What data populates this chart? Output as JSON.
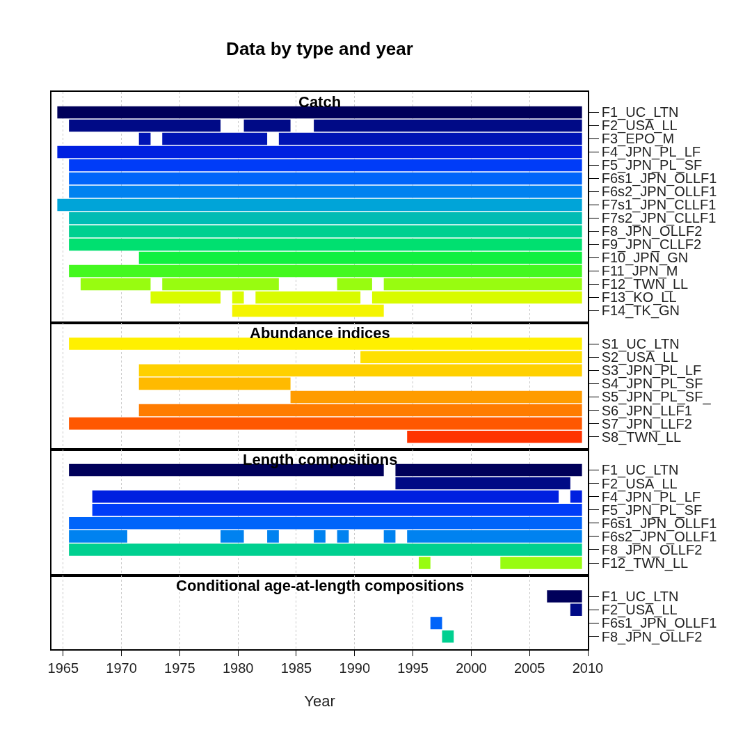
{
  "chart_data": [
    {
      "type": "bar",
      "orientation": "horizontal",
      "title": "Data by type and year",
      "annotations": [
        "Catch"
      ],
      "categories": [
        "F1_UC_LTN",
        "F2_USA_LL",
        "F3_EPO_M",
        "F4_JPN_PL_LF",
        "F5_JPN_PL_SF",
        "F6s1_JPN_OLLF1",
        "F6s2_JPN_OLLF1",
        "F7s1_JPN_CLLF1",
        "F7s2_JPN_CLLF1",
        "F8_JPN_OLLF2",
        "F9_JPN_CLLF2",
        "F10_JPN_GN",
        "F11_JPN_M",
        "F12_TWN_LL",
        "F13_KO_LL",
        "F14_TK_GN"
      ],
      "series": [
        {
          "colors": [
            "#00005a",
            "#000a86",
            "#0014b4",
            "#0020e0",
            "#003cf8",
            "#0064fa",
            "#0082f0",
            "#00a4d8",
            "#00bcb4",
            "#00d090",
            "#00e070",
            "#10f040",
            "#44f820",
            "#98fc10",
            "#d8fc00",
            "#f4f400"
          ],
          "base": [
            1964.5,
            1965.5,
            1971.5,
            1964.5,
            1965.5,
            1965.5,
            1965.5,
            1964.5,
            1965.5,
            1965.5,
            1965.5,
            1971.5,
            1965.5,
            1966.5,
            1972.5,
            1979.5
          ],
          "values": [
            45,
            13,
            1,
            45,
            44,
            44,
            44,
            45,
            44,
            44,
            44,
            38,
            44,
            6,
            6,
            13
          ]
        },
        {
          "colors": [
            "#00005a",
            "#000a86",
            "#0014b4",
            "#0020e0",
            "#003cf8",
            "#0064fa",
            "#0082f0",
            "#00a4d8",
            "#00bcb4",
            "#00d090",
            "#00e070",
            "#10f040",
            "#44f820",
            "#98fc10",
            "#d8fc00",
            "#f4f400"
          ],
          "base": [
            null,
            1980.5,
            1973.5,
            null,
            null,
            null,
            null,
            null,
            null,
            null,
            null,
            null,
            null,
            1973.5,
            1979.5,
            null
          ],
          "values": [
            null,
            4,
            9,
            null,
            null,
            null,
            null,
            null,
            null,
            null,
            null,
            null,
            null,
            10,
            1,
            null
          ]
        },
        {
          "colors": [
            "#00005a",
            "#000a86",
            "#0014b4",
            "#0020e0",
            "#003cf8",
            "#0064fa",
            "#0082f0",
            "#00a4d8",
            "#00bcb4",
            "#00d090",
            "#00e070",
            "#10f040",
            "#44f820",
            "#98fc10",
            "#d8fc00",
            "#f4f400"
          ],
          "base": [
            null,
            1986.5,
            1983.5,
            null,
            null,
            null,
            null,
            null,
            null,
            null,
            null,
            null,
            null,
            1988.5,
            1981.5,
            null
          ],
          "values": [
            null,
            23,
            26,
            null,
            null,
            null,
            null,
            null,
            null,
            null,
            null,
            null,
            null,
            3,
            9,
            null
          ]
        },
        {
          "colors": [
            "#00005a",
            "#000a86",
            "#0014b4",
            "#0020e0",
            "#003cf8",
            "#0064fa",
            "#0082f0",
            "#00a4d8",
            "#00bcb4",
            "#00d090",
            "#00e070",
            "#10f040",
            "#44f820",
            "#98fc10",
            "#d8fc00",
            "#f4f400"
          ],
          "base": [
            null,
            null,
            null,
            null,
            null,
            null,
            null,
            null,
            null,
            null,
            null,
            null,
            null,
            1992.5,
            1991.5,
            null
          ],
          "values": [
            null,
            null,
            null,
            null,
            null,
            null,
            null,
            null,
            null,
            null,
            null,
            null,
            null,
            17,
            18,
            null
          ]
        }
      ],
      "xlim": [
        1964,
        2010
      ],
      "xticks": [
        1965,
        1970,
        1975,
        1980,
        1985,
        1990,
        1995,
        2000,
        2005,
        2010
      ],
      "grid": "x",
      "tick_labels": "y"
    },
    {
      "type": "bar",
      "orientation": "horizontal",
      "annotations": [
        "Abundance indices"
      ],
      "categories": [
        "S1_UC_LTN",
        "S2_USA_LL",
        "S3_JPN_PL_LF",
        "S4_JPN_PL_SF",
        "S5_JPN_PL_SF_",
        "S6_JPN_LLF1",
        "S7_JPN_LLF2",
        "S8_TWN_LL"
      ],
      "series": [
        {
          "colors": [
            "#fff000",
            "#ffe000",
            "#ffd000",
            "#ffba00",
            "#ff9c00",
            "#ff7c00",
            "#ff5800",
            "#ff3400"
          ],
          "base": [
            1965.5,
            1990.5,
            1971.5,
            1971.5,
            1984.5,
            1971.5,
            1965.5,
            1994.5
          ],
          "values": [
            44,
            19,
            38,
            13,
            25,
            38,
            44,
            15
          ]
        }
      ],
      "xlim": [
        1964,
        2010
      ],
      "xticks": [
        1965,
        1970,
        1975,
        1980,
        1985,
        1990,
        1995,
        2000,
        2005,
        2010
      ],
      "grid": "x",
      "tick_labels": "y"
    },
    {
      "type": "bar",
      "orientation": "horizontal",
      "annotations": [
        "Length compositions"
      ],
      "categories": [
        "F1_UC_LTN",
        "F2_USA_LL",
        "F4_JPN_PL_LF",
        "F5_JPN_PL_SF",
        "F6s1_JPN_OLLF1",
        "F6s2_JPN_OLLF1",
        "F8_JPN_OLLF2",
        "F12_TWN_LL"
      ],
      "series": [
        {
          "colors": [
            "#00005a",
            "#000a86",
            "#0020e0",
            "#003cf8",
            "#0064fa",
            "#0082f0",
            "#00d090",
            "#98fc10"
          ],
          "base": [
            1965.5,
            1993.5,
            1967.5,
            1967.5,
            1965.5,
            1965.5,
            1965.5,
            1995.5
          ],
          "values": [
            27,
            15,
            40,
            42,
            44,
            5,
            44,
            1
          ]
        },
        {
          "colors": [
            "#00005a",
            "#000a86",
            "#0020e0",
            "#003cf8",
            "#0064fa",
            "#0082f0",
            "#00d090",
            "#98fc10"
          ],
          "base": [
            1993.5,
            null,
            2008.5,
            null,
            null,
            1978.5,
            null,
            2002.5
          ],
          "values": [
            16,
            null,
            1,
            null,
            null,
            2,
            null,
            7
          ]
        },
        {
          "colors": [
            "#00005a",
            "#000a86",
            "#0020e0",
            "#003cf8",
            "#0064fa",
            "#0082f0",
            "#00d090",
            "#98fc10"
          ],
          "base": [
            null,
            null,
            null,
            null,
            null,
            1982.5,
            null,
            null
          ],
          "values": [
            null,
            null,
            null,
            null,
            null,
            1,
            null,
            null
          ]
        },
        {
          "colors": [
            "#00005a",
            "#000a86",
            "#0020e0",
            "#003cf8",
            "#0064fa",
            "#0082f0",
            "#00d090",
            "#98fc10"
          ],
          "base": [
            null,
            null,
            null,
            null,
            null,
            1986.5,
            null,
            null
          ],
          "values": [
            null,
            null,
            null,
            null,
            null,
            1,
            null,
            null
          ]
        },
        {
          "colors": [
            "#00005a",
            "#000a86",
            "#0020e0",
            "#003cf8",
            "#0064fa",
            "#0082f0",
            "#00d090",
            "#98fc10"
          ],
          "base": [
            null,
            null,
            null,
            null,
            null,
            1988.5,
            null,
            null
          ],
          "values": [
            null,
            null,
            null,
            null,
            null,
            1,
            null,
            null
          ]
        },
        {
          "colors": [
            "#00005a",
            "#000a86",
            "#0020e0",
            "#003cf8",
            "#0064fa",
            "#0082f0",
            "#00d090",
            "#98fc10"
          ],
          "base": [
            null,
            null,
            null,
            null,
            null,
            1992.5,
            null,
            null
          ],
          "values": [
            null,
            null,
            null,
            null,
            null,
            1,
            null,
            null
          ]
        },
        {
          "colors": [
            "#00005a",
            "#000a86",
            "#0020e0",
            "#003cf8",
            "#0064fa",
            "#0082f0",
            "#00d090",
            "#98fc10"
          ],
          "base": [
            null,
            null,
            null,
            null,
            null,
            1994.5,
            null,
            null
          ],
          "values": [
            null,
            null,
            null,
            null,
            null,
            15,
            null,
            null
          ]
        }
      ],
      "xlim": [
        1964,
        2010
      ],
      "xticks": [
        1965,
        1970,
        1975,
        1980,
        1985,
        1990,
        1995,
        2000,
        2005,
        2010
      ],
      "grid": "x",
      "tick_labels": "y"
    },
    {
      "type": "bar",
      "orientation": "horizontal",
      "annotations": [
        "Conditional age-at-length compositions"
      ],
      "xlabel": "Year",
      "categories": [
        "F1_UC_LTN",
        "F2_USA_LL",
        "F6s1_JPN_OLLF1",
        "F8_JPN_OLLF2"
      ],
      "series": [
        {
          "colors": [
            "#00005a",
            "#000a86",
            "#0064fa",
            "#00d090"
          ],
          "base": [
            2006.5,
            2008.5,
            1996.5,
            1997.5
          ],
          "values": [
            3,
            1,
            1,
            1
          ]
        }
      ],
      "xlim": [
        1964,
        2010
      ],
      "xticks": [
        1965,
        1970,
        1975,
        1980,
        1985,
        1990,
        1995,
        2000,
        2005,
        2010
      ],
      "grid": "x"
    }
  ]
}
